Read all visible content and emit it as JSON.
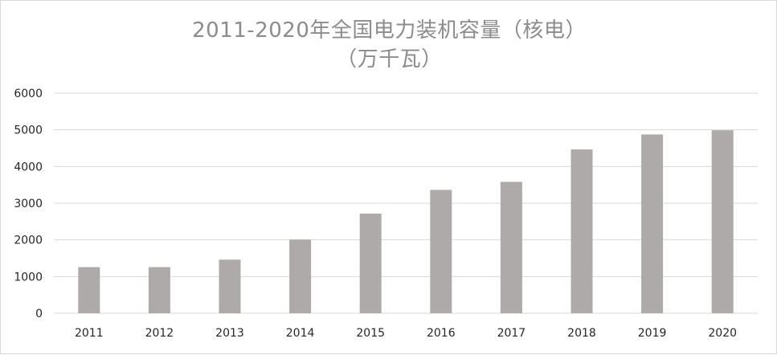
{
  "chart_data": {
    "type": "bar",
    "title": "2011-2020年全国电力装机容量（核电）",
    "subtitle": "（万千瓦）",
    "categories": [
      "2011",
      "2012",
      "2013",
      "2014",
      "2015",
      "2016",
      "2017",
      "2018",
      "2019",
      "2020"
    ],
    "values": [
      1257,
      1257,
      1461,
      2008,
      2717,
      3364,
      3582,
      4466,
      4874,
      4989
    ],
    "ylim": [
      0,
      6000
    ],
    "yticks": [
      "0",
      "1000",
      "2000",
      "3000",
      "4000",
      "5000",
      "6000"
    ],
    "xlabel": "",
    "ylabel": "",
    "grid": true,
    "legend": "none",
    "bar_color": "#aeaaaa",
    "grid_color": "#d9d9d9",
    "title_color": "#8c8c8c"
  }
}
